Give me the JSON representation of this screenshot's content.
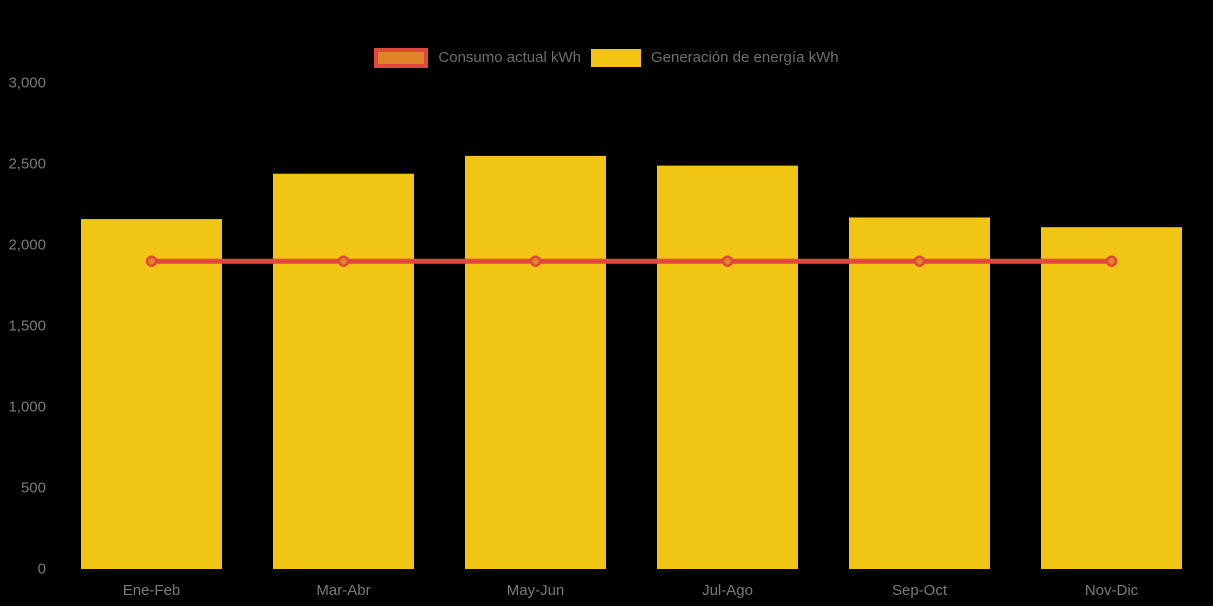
{
  "page": {
    "background_color": "#000000"
  },
  "legend": {
    "position": "top-center",
    "text_color": "#6E6E6E",
    "items": [
      {
        "label": "Consumo actual kWh",
        "series_type": "line",
        "swatch_fill": "#E0832B",
        "swatch_border": "#E2473B"
      },
      {
        "label": "Generación de energía kWh",
        "series_type": "bar",
        "swatch_fill": "#F0C514"
      }
    ]
  },
  "chart_data": {
    "type": "bar",
    "subtype": "combo-bar-line",
    "title": "",
    "xlabel": "",
    "ylabel": "",
    "categories": [
      "Ene-Feb",
      "Mar-Abr",
      "May-Jun",
      "Jul-Ago",
      "Sep-Oct",
      "Nov-Dic"
    ],
    "series": [
      {
        "name": "Generación de energía kWh",
        "type": "bar",
        "color": "#F0C514",
        "values": [
          2160,
          2440,
          2550,
          2490,
          2170,
          2110
        ]
      },
      {
        "name": "Consumo actual kWh",
        "type": "line",
        "color": "#E2473B",
        "marker_fill": "#E0832B",
        "marker_stroke": "#E2473B",
        "values": [
          1900,
          1900,
          1900,
          1900,
          1900,
          1900
        ]
      }
    ],
    "ylim": [
      0,
      3000
    ],
    "yticks": [
      0,
      500,
      1000,
      1500,
      2000,
      2500,
      3000
    ],
    "ytick_labels": [
      "0",
      "500",
      "1,000",
      "1,500",
      "2,000",
      "2,500",
      "3,000"
    ],
    "grid": false,
    "legend_position": "top",
    "axis_text_color": "#7A7A7A"
  }
}
